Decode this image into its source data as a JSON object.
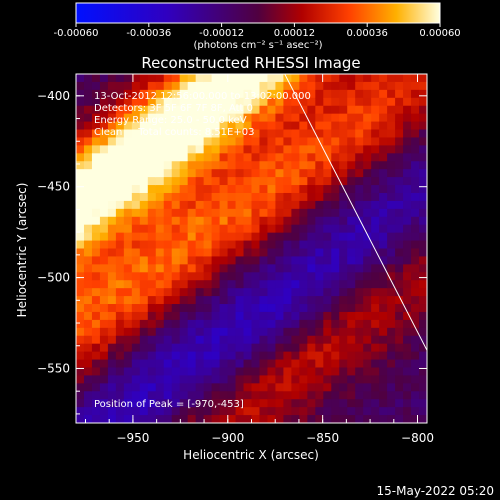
{
  "chart_data": {
    "type": "heatmap",
    "title": "Reconstructed RHESSI Image",
    "xlabel": "Heliocentric X (arcsec)",
    "ylabel": "Heliocentric Y (arcsec)",
    "xlim": [
      -980,
      -795
    ],
    "ylim": [
      -580,
      -388
    ],
    "x_ticks": [
      -950,
      -900,
      -850,
      -800
    ],
    "y_ticks": [
      -400,
      -450,
      -500,
      -550
    ],
    "colorbar": {
      "range": [
        -0.0006,
        0.0006
      ],
      "ticks": [
        {
          "value": -0.0006,
          "label": "-0.00060"
        },
        {
          "value": -0.00036,
          "label": "-0.00036"
        },
        {
          "value": -0.00012,
          "label": "-0.00012"
        },
        {
          "value": 0.00012,
          "label": "0.00012"
        },
        {
          "value": 0.00036,
          "label": "0.00036"
        },
        {
          "value": 0.0006,
          "label": "0.00060"
        }
      ],
      "units": "(photons cm⁻² s⁻¹ asec⁻²)"
    },
    "info": [
      "13-Oct-2012 12:56:00.000 to 13:02:00.000",
      "Detectors: 3F 5F 6F 7F 8F, Att 0",
      "Energy Range: 25.0 - 50.0 keV",
      "Clean     Total counts: 8.51E+03"
    ],
    "peak_label": "Position of Peak = [-970,-453]",
    "peak": {
      "x": -970,
      "y": -453
    },
    "limb_line": [
      [
        -870,
        -388
      ],
      [
        -795,
        -540
      ]
    ],
    "bands": [
      {
        "x0": -950,
        "y0": -440,
        "intensity": 0.00055
      },
      {
        "x0": -965,
        "y0": -515,
        "intensity": 0.00045
      },
      {
        "x0": -920,
        "y0": -405,
        "intensity": 0.00035
      },
      {
        "x0": -845,
        "y0": -430,
        "intensity": 0.0004
      },
      {
        "x0": -880,
        "y0": -560,
        "intensity": 0.0003
      }
    ],
    "troughs": [
      {
        "x0": -900,
        "y0": -470,
        "intensity": -0.0003
      },
      {
        "x0": -870,
        "y0": -520,
        "intensity": -0.0002
      },
      {
        "x0": -960,
        "y0": -570,
        "intensity": -0.0001
      }
    ]
  },
  "timestamp": "15-May-2022 05:20"
}
